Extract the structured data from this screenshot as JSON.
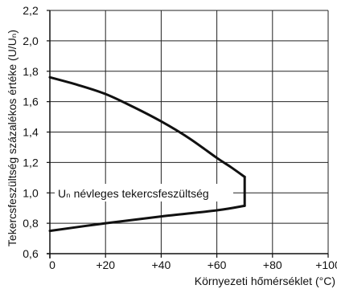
{
  "chart_data": {
    "type": "line",
    "xlabel": "Környezeti hőmérséklet (°C)",
    "ylabel": "Tekercsfeszültség százalékos értéke (U/Uₙ)",
    "xlim": [
      0,
      100
    ],
    "ylim": [
      0.6,
      2.2
    ],
    "x_ticks": [
      0,
      20,
      40,
      60,
      80,
      100
    ],
    "x_tick_labels": [
      "0",
      "+20",
      "+40",
      "+60",
      "+80",
      "+100"
    ],
    "y_ticks": [
      0.6,
      0.8,
      1.0,
      1.2,
      1.4,
      1.6,
      1.8,
      2.0,
      2.2
    ],
    "y_tick_labels": [
      "0,6",
      "0,8",
      "1,0",
      "1,2",
      "1,4",
      "1,6",
      "1,8",
      "2,0",
      "2,2"
    ],
    "grid": true,
    "series": [
      {
        "role": "upper-limit",
        "x": [
          0,
          10,
          20,
          30,
          40,
          50,
          60,
          65,
          70
        ],
        "y": [
          1.76,
          1.71,
          1.65,
          1.565,
          1.47,
          1.36,
          1.23,
          1.17,
          1.105
        ]
      },
      {
        "role": "vertical-limit",
        "x": [
          70,
          70
        ],
        "y": [
          1.105,
          0.915
        ]
      },
      {
        "role": "lower-limit",
        "x": [
          0,
          20,
          40,
          60,
          70
        ],
        "y": [
          0.75,
          0.8,
          0.845,
          0.885,
          0.915
        ]
      }
    ],
    "annotations": [
      {
        "text": "Uₙ névleges tekercsfeszültség",
        "x": 2,
        "y": 1.0
      }
    ],
    "colors": {
      "curve": "#111111",
      "grid": "#222222",
      "axis": "#111111"
    }
  }
}
